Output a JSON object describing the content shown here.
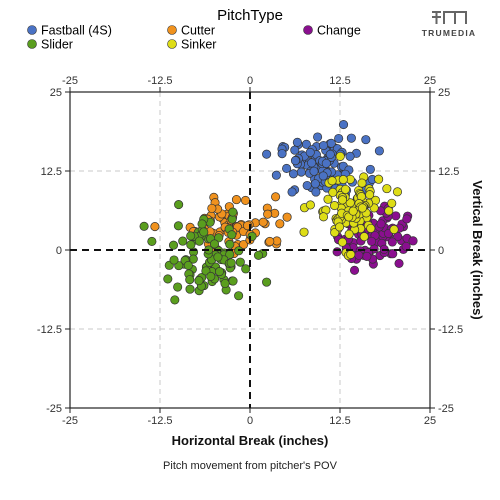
{
  "chart_data": {
    "type": "scatter",
    "title": "PitchType",
    "xlabel": "Horizontal Break (inches)",
    "ylabel": "Vertical Break (inches)",
    "caption": "Pitch movement from pitcher's POV",
    "brand": "TRUMEDIA",
    "xlim": [
      -25,
      25
    ],
    "ylim": [
      -25,
      25
    ],
    "ticks": [
      -25,
      -12.5,
      0,
      12.5,
      25
    ],
    "tick_labels": [
      "-25",
      "-12.5",
      "0",
      "12.5",
      "25"
    ],
    "grid": true,
    "legend_position": "top",
    "series": [
      {
        "name": "Fastball (4S)",
        "color": "#4a72c4",
        "center": [
          10,
          13
        ],
        "spread": [
          3.0,
          2.3
        ],
        "count": 110
      },
      {
        "name": "Cutter",
        "color": "#f0921e",
        "center": [
          -1.5,
          4
        ],
        "spread": [
          3.6,
          2.2
        ],
        "count": 70
      },
      {
        "name": "Change",
        "color": "#8a0f8f",
        "center": [
          17,
          2.5
        ],
        "spread": [
          2.4,
          2.4
        ],
        "count": 95
      },
      {
        "name": "Slider",
        "color": "#5a9e1e",
        "center": [
          -6,
          -1.5
        ],
        "spread": [
          3.2,
          3.2
        ],
        "count": 95
      },
      {
        "name": "Sinker",
        "color": "#dedd16",
        "center": [
          13.5,
          6.5
        ],
        "spread": [
          2.4,
          2.8
        ],
        "count": 100
      }
    ]
  }
}
